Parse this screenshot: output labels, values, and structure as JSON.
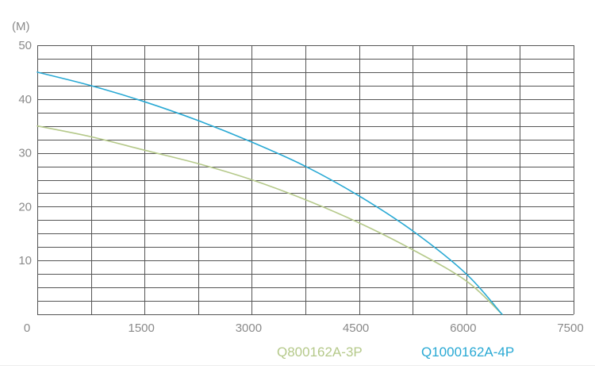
{
  "chart_data": {
    "type": "line",
    "title": "",
    "xlabel": "",
    "ylabel": "(M)",
    "xlim": [
      0,
      7500
    ],
    "ylim": [
      0,
      50
    ],
    "x_ticks": [
      {
        "value": 0,
        "label": "0"
      },
      {
        "value": 1500,
        "label": "1500"
      },
      {
        "value": 3000,
        "label": "3000"
      },
      {
        "value": 4500,
        "label": "4500"
      },
      {
        "value": 6000,
        "label": "6000"
      },
      {
        "value": 7500,
        "label": "7500"
      }
    ],
    "y_ticks": [
      {
        "value": 10,
        "label": "10"
      },
      {
        "value": 20,
        "label": "20"
      },
      {
        "value": 30,
        "label": "30"
      },
      {
        "value": 40,
        "label": "40"
      },
      {
        "value": 50,
        "label": "50"
      }
    ],
    "x_grid_step": 750,
    "y_grid_step": 2.5,
    "grid": true,
    "legend_position": "bottom-right",
    "series": [
      {
        "name": "Q800162A-3P",
        "color": "#b5c98a",
        "x": [
          0,
          750,
          1500,
          2250,
          3000,
          3750,
          4500,
          5250,
          6000,
          6500
        ],
        "y": [
          35,
          33,
          30.5,
          28,
          25,
          21.3,
          17,
          12,
          6.2,
          0
        ]
      },
      {
        "name": "Q1000162A-4P",
        "color": "#29a9d4",
        "x": [
          0,
          750,
          1500,
          2250,
          3000,
          3750,
          4500,
          5250,
          6000,
          6500
        ],
        "y": [
          45,
          42.5,
          39.5,
          36,
          32,
          27.5,
          22,
          15.5,
          7.5,
          0
        ]
      }
    ]
  }
}
